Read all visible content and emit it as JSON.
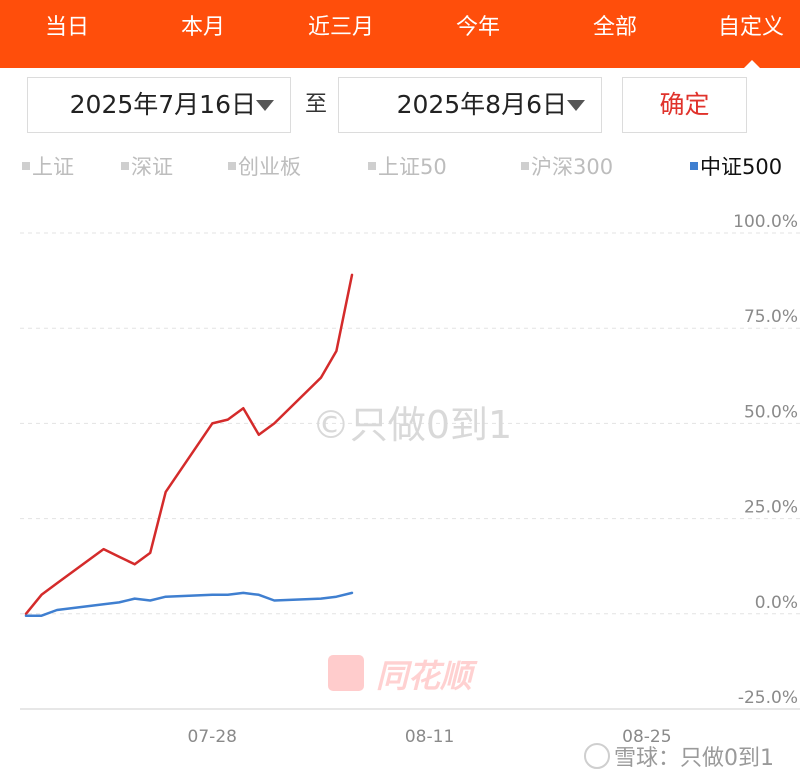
{
  "tabs": [
    {
      "label": "当日"
    },
    {
      "label": "本月"
    },
    {
      "label": "近三月"
    },
    {
      "label": "今年"
    },
    {
      "label": "全部"
    },
    {
      "label": "自定义"
    }
  ],
  "range": {
    "start": "2025年7月16日",
    "to": "至",
    "end": "2025年8月6日",
    "confirm": "确定"
  },
  "legend": [
    {
      "label": "上证",
      "active": false
    },
    {
      "label": "深证",
      "active": false
    },
    {
      "label": "创业板",
      "active": false
    },
    {
      "label": "上证50",
      "active": false
    },
    {
      "label": "沪深300",
      "active": false
    },
    {
      "label": "中证500",
      "active": true
    }
  ],
  "watermarks": {
    "center": "©只做0到1",
    "brand": "同花顺",
    "corner": "雪球：只做0到1"
  },
  "colors": {
    "accent": "#ff4e0b",
    "portfolio_line": "#d42b2b",
    "benchmark_line": "#3f7fd0"
  },
  "chart_data": {
    "type": "line",
    "title": "",
    "xlabel": "",
    "ylabel": "",
    "x_ticks": [
      "07-28",
      "08-11",
      "08-25"
    ],
    "y_ticks": [
      "100.0%",
      "75.0%",
      "50.0%",
      "25.0%",
      "0.0%",
      "-25.0%"
    ],
    "ylim": [
      -25,
      100
    ],
    "xlim": [
      "2025-07-16",
      "2025-08-31"
    ],
    "grid": true,
    "series": [
      {
        "color": "#d42b2b",
        "x": [
          "2025-07-16",
          "2025-07-17",
          "2025-07-18",
          "2025-07-21",
          "2025-07-22",
          "2025-07-23",
          "2025-07-24",
          "2025-07-25",
          "2025-07-28",
          "2025-07-29",
          "2025-07-30",
          "2025-07-31",
          "2025-08-01",
          "2025-08-04",
          "2025-08-05",
          "2025-08-06"
        ],
        "y": [
          0,
          5,
          8,
          17,
          15,
          13,
          16,
          32,
          50,
          51,
          54,
          47,
          50,
          62,
          69,
          89
        ]
      },
      {
        "name": "中证500",
        "color": "#3f7fd0",
        "x": [
          "2025-07-16",
          "2025-07-17",
          "2025-07-18",
          "2025-07-21",
          "2025-07-22",
          "2025-07-23",
          "2025-07-24",
          "2025-07-25",
          "2025-07-28",
          "2025-07-29",
          "2025-07-30",
          "2025-07-31",
          "2025-08-01",
          "2025-08-04",
          "2025-08-05",
          "2025-08-06"
        ],
        "y": [
          -0.5,
          -0.5,
          1,
          2.5,
          3,
          4,
          3.5,
          4.5,
          5,
          5,
          5.5,
          5,
          3.5,
          4,
          4.5,
          5.5
        ]
      }
    ]
  }
}
